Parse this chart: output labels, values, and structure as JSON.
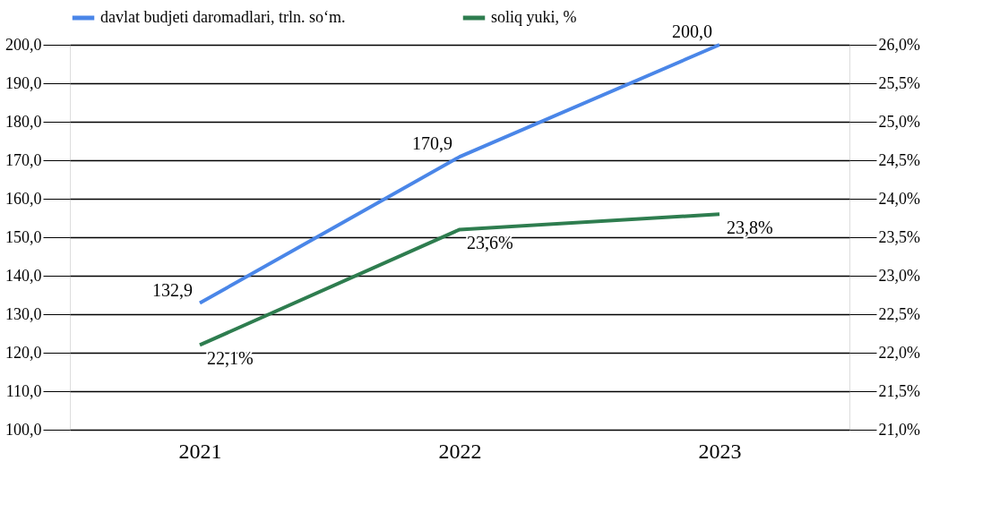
{
  "chart_data": {
    "type": "line",
    "categories": [
      "2021",
      "2022",
      "2023"
    ],
    "series": [
      {
        "name": "davlat budjeti daromadlari, trln. so‘m.",
        "color": "#4a86e8",
        "values": [
          132.9,
          170.9,
          200.0
        ],
        "value_labels": [
          "132,9",
          "170,9",
          "200,0"
        ]
      },
      {
        "name": "soliq yuki, %",
        "color": "#2e7d4f",
        "axis": "y2",
        "values": [
          22.1,
          23.6,
          23.8
        ],
        "value_labels": [
          "22,1%",
          "23,6%",
          "23,8%"
        ]
      }
    ],
    "ylim": [
      100,
      200
    ],
    "yticks": [
      {
        "value": 100,
        "label": "100,0"
      },
      {
        "value": 110,
        "label": "110,0"
      },
      {
        "value": 120,
        "label": "120,0"
      },
      {
        "value": 130,
        "label": "130,0"
      },
      {
        "value": 140,
        "label": "140,0"
      },
      {
        "value": 150,
        "label": "150,0"
      },
      {
        "value": 160,
        "label": "160,0"
      },
      {
        "value": 170,
        "label": "170,0"
      },
      {
        "value": 180,
        "label": "180,0"
      },
      {
        "value": 190,
        "label": "190,0"
      },
      {
        "value": 200,
        "label": "200,0"
      }
    ],
    "y2lim": [
      21,
      26
    ],
    "y2ticks": [
      {
        "value": 21,
        "label": "21,0%"
      },
      {
        "value": 21.5,
        "label": "21,5%"
      },
      {
        "value": 22,
        "label": "22,0%"
      },
      {
        "value": 22.5,
        "label": "22,5%"
      },
      {
        "value": 23,
        "label": "23,0%"
      },
      {
        "value": 23.5,
        "label": "23,5%"
      },
      {
        "value": 24,
        "label": "24,0%"
      },
      {
        "value": 24.5,
        "label": "24,5%"
      },
      {
        "value": 25,
        "label": "25,0%"
      },
      {
        "value": 25.5,
        "label": "25,5%"
      },
      {
        "value": 26,
        "label": "26,0%"
      }
    ],
    "grid": "y",
    "legend": "top",
    "marker": "none",
    "line_style": "solid"
  }
}
